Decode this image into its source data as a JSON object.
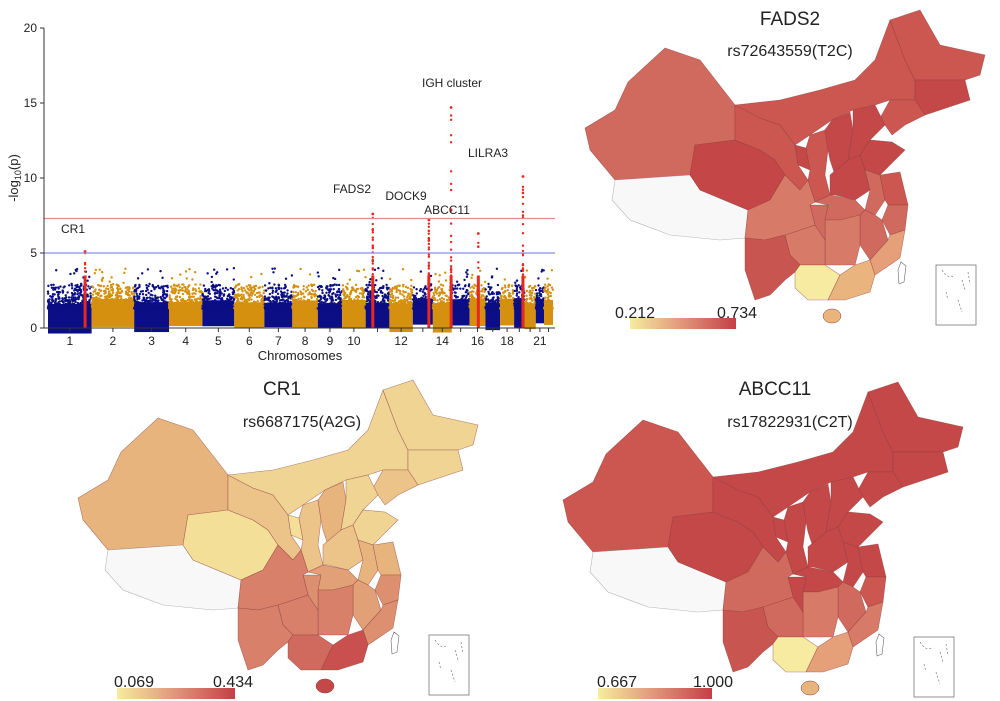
{
  "chart_data": [
    {
      "type": "scatter",
      "subtype": "manhattan",
      "xlabel": "Chromosomes",
      "ylabel_main": "-log",
      "ylabel_sub": "10",
      "ylabel_tail": "(p)",
      "ylim": [
        0,
        20
      ],
      "yticks": [
        "0",
        "5",
        "10",
        "15",
        "20"
      ],
      "xtick_labels": [
        "1",
        "2",
        "3",
        "4",
        "5",
        "6",
        "7",
        "8",
        "9",
        "10",
        "12",
        "14",
        "16",
        "18",
        "21"
      ],
      "xtick_chromosomes": [
        1,
        2,
        3,
        4,
        5,
        6,
        7,
        8,
        9,
        10,
        12,
        14,
        16,
        18,
        21
      ],
      "chromosomes": [
        1,
        2,
        3,
        4,
        5,
        6,
        7,
        8,
        9,
        10,
        11,
        12,
        13,
        14,
        15,
        16,
        17,
        18,
        19,
        20,
        21,
        22
      ],
      "series_colors": [
        "#0b0e85",
        "#d4900e"
      ],
      "highlight_color": "#e8281e",
      "genome_wide_threshold": {
        "value": 7.3,
        "color": "#e88a84"
      },
      "suggestive_threshold": {
        "value": 5,
        "color": "#8a8ef0"
      },
      "background_max": 4.0,
      "hits": [
        {
          "label": "CR1",
          "chromosome": 1,
          "peak": 5.1
        },
        {
          "label": "FADS2",
          "chromosome": 11,
          "peak": 7.6
        },
        {
          "label": "DOCK9",
          "chromosome": 13,
          "peak": 7.2
        },
        {
          "label": "IGH cluster",
          "chromosome": 14,
          "peak": 14.7
        },
        {
          "label": "ABCC11",
          "chromosome": 16,
          "peak": 6.3
        },
        {
          "label": "LILRA3",
          "chromosome": 19,
          "peak": 10.1
        }
      ]
    },
    {
      "type": "choropleth",
      "title": "FADS2",
      "subtitle": "rs72643559(T2C)",
      "scale_min": "0.212",
      "scale_max": "0.734",
      "scale_colors": [
        "#f6ec9f",
        "#c43f45"
      ],
      "no_data_color": "#f8f8f8",
      "region_fills": [
        "#d06a5e",
        "#f8f8f8",
        "#c44646",
        "#cc5650",
        "#cc5650",
        "#cc5650",
        "#c44848",
        "#cc5650",
        "#c44848",
        "#cc5650",
        "#c44848",
        "#c44848",
        "#c44848",
        "#c44848",
        "#d06a5e",
        "#d06a5e",
        "#cc5650",
        "#d06a5e",
        "#d06a5e",
        "#e5a07a",
        "#d87a68",
        "#d87a68",
        "#d06a5e",
        "#d87a68",
        "#c95550",
        "#f6eba0",
        "#eab47e",
        "#eab47e"
      ]
    },
    {
      "type": "choropleth",
      "title": "CR1",
      "subtitle": "rs6687175(A2G)",
      "scale_min": "0.069",
      "scale_max": "0.434",
      "scale_colors": [
        "#f6ec9f",
        "#c43f45"
      ],
      "no_data_color": "#f8f8f8",
      "region_fills": [
        "#e8b47e",
        "#f8f8f8",
        "#f3df98",
        "#ecc48a",
        "#f0d494",
        "#f0d494",
        "#f0d494",
        "#ecc48a",
        "#f3df98",
        "#ecc48a",
        "#e8b47e",
        "#f0d494",
        "#f0d494",
        "#ecc48a",
        "#e2a077",
        "#e8b47e",
        "#e8b47e",
        "#dd9070",
        "#e2a077",
        "#dd9070",
        "#d8806a",
        "#d8806a",
        "#dd9070",
        "#d8806a",
        "#d8806a",
        "#d06a5e",
        "#c9504e",
        "#c44848"
      ]
    },
    {
      "type": "choropleth",
      "title": "ABCC11",
      "subtitle": "rs17822931(C2T)",
      "scale_min": "0.667",
      "scale_max": "1.000",
      "scale_colors": [
        "#f6ec9f",
        "#c43f45"
      ],
      "no_data_color": "#f8f8f8",
      "region_fills": [
        "#cc5650",
        "#f8f8f8",
        "#c44848",
        "#c44848",
        "#c44848",
        "#c44848",
        "#c44848",
        "#c44848",
        "#c44848",
        "#c44848",
        "#c44848",
        "#c44848",
        "#c44848",
        "#c44848",
        "#c44848",
        "#c44848",
        "#c44848",
        "#cc5650",
        "#d06a5e",
        "#d87a68",
        "#d87a68",
        "#d06a5e",
        "#c44848",
        "#d06a5e",
        "#c95550",
        "#f6eba0",
        "#e5a07a",
        "#e8b47e"
      ]
    }
  ]
}
